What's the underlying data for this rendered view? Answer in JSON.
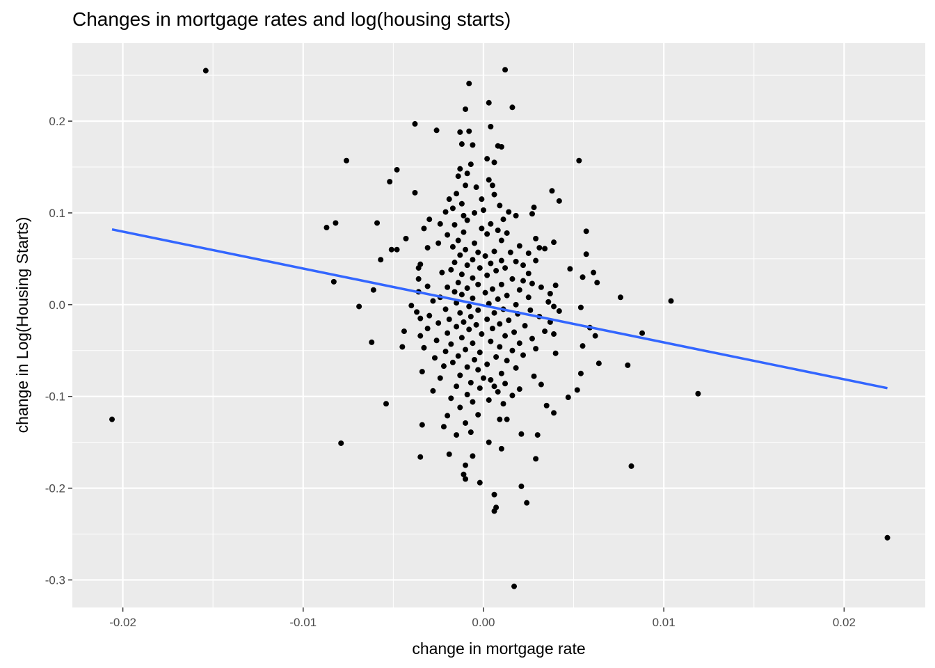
{
  "chart_data": {
    "type": "scatter",
    "title": "Changes in mortgage rates and log(housing starts)",
    "xlabel": "change in mortgage rate",
    "ylabel": "change in Log(Housing Starts)",
    "xlim": [
      -0.0228,
      0.0245
    ],
    "ylim": [
      -0.33,
      0.285
    ],
    "x_ticks": [
      {
        "value": -0.02,
        "label": "-0.02"
      },
      {
        "value": -0.01,
        "label": "-0.01"
      },
      {
        "value": 0.0,
        "label": "0.00"
      },
      {
        "value": 0.01,
        "label": "0.01"
      },
      {
        "value": 0.02,
        "label": "0.02"
      }
    ],
    "y_ticks": [
      {
        "value": -0.3,
        "label": "-0.3"
      },
      {
        "value": -0.2,
        "label": "-0.2"
      },
      {
        "value": -0.1,
        "label": "-0.1"
      },
      {
        "value": 0.0,
        "label": "0.0"
      },
      {
        "value": 0.1,
        "label": "0.1"
      },
      {
        "value": 0.2,
        "label": "0.2"
      }
    ],
    "grid": true,
    "panel_background": "#ebebeb",
    "grid_color": "#ffffff",
    "point_color": "#000000",
    "trend_color": "#3366ff",
    "trend_line": {
      "x": [
        -0.0206,
        0.0224
      ],
      "y": [
        0.082,
        -0.091
      ]
    },
    "points": [
      {
        "x": -0.0206,
        "y": -0.125
      },
      {
        "x": -0.0154,
        "y": 0.255
      },
      {
        "x": 0.0224,
        "y": -0.254
      },
      {
        "x": 0.0012,
        "y": 0.256
      },
      {
        "x": 0.0017,
        "y": -0.307
      },
      {
        "x": -0.0008,
        "y": 0.241
      },
      {
        "x": 0.0003,
        "y": 0.22
      },
      {
        "x": 0.0016,
        "y": 0.215
      },
      {
        "x": -0.001,
        "y": 0.213
      },
      {
        "x": -0.0038,
        "y": 0.197
      },
      {
        "x": 0.0004,
        "y": 0.194
      },
      {
        "x": -0.0026,
        "y": 0.19
      },
      {
        "x": -0.0013,
        "y": 0.188
      },
      {
        "x": -0.0008,
        "y": 0.189
      },
      {
        "x": -0.0006,
        "y": 0.174
      },
      {
        "x": -0.0012,
        "y": 0.175
      },
      {
        "x": 0.0008,
        "y": 0.173
      },
      {
        "x": 0.001,
        "y": 0.172
      },
      {
        "x": -0.0076,
        "y": 0.157
      },
      {
        "x": 0.0053,
        "y": 0.157
      },
      {
        "x": 0.0006,
        "y": 0.155
      },
      {
        "x": 0.0002,
        "y": 0.159
      },
      {
        "x": -0.0007,
        "y": 0.153
      },
      {
        "x": -0.0048,
        "y": 0.147
      },
      {
        "x": -0.0013,
        "y": 0.148
      },
      {
        "x": -0.0009,
        "y": 0.143
      },
      {
        "x": -0.0014,
        "y": 0.14
      },
      {
        "x": -0.0052,
        "y": 0.134
      },
      {
        "x": 0.0003,
        "y": 0.136
      },
      {
        "x": -0.001,
        "y": 0.13
      },
      {
        "x": -0.0004,
        "y": 0.128
      },
      {
        "x": 0.0005,
        "y": 0.13
      },
      {
        "x": -0.0038,
        "y": 0.122
      },
      {
        "x": 0.0038,
        "y": 0.124
      },
      {
        "x": -0.0015,
        "y": 0.121
      },
      {
        "x": 0.0006,
        "y": 0.12
      },
      {
        "x": 0.0042,
        "y": 0.113
      },
      {
        "x": -0.0019,
        "y": 0.115
      },
      {
        "x": -0.0001,
        "y": 0.115
      },
      {
        "x": -0.0012,
        "y": 0.11
      },
      {
        "x": 0.0009,
        "y": 0.108
      },
      {
        "x": 0.0028,
        "y": 0.106
      },
      {
        "x": -0.0017,
        "y": 0.105
      },
      {
        "x": 0.0,
        "y": 0.103
      },
      {
        "x": -0.0021,
        "y": 0.101
      },
      {
        "x": 0.0014,
        "y": 0.101
      },
      {
        "x": -0.0005,
        "y": 0.1
      },
      {
        "x": 0.0027,
        "y": 0.099
      },
      {
        "x": -0.0011,
        "y": 0.097
      },
      {
        "x": 0.0018,
        "y": 0.097
      },
      {
        "x": -0.003,
        "y": 0.093
      },
      {
        "x": -0.0082,
        "y": 0.089
      },
      {
        "x": -0.0059,
        "y": 0.089
      },
      {
        "x": -0.0009,
        "y": 0.092
      },
      {
        "x": 0.0011,
        "y": 0.093
      },
      {
        "x": -0.0024,
        "y": 0.088
      },
      {
        "x": -0.0016,
        "y": 0.087
      },
      {
        "x": 0.0004,
        "y": 0.088
      },
      {
        "x": -0.0087,
        "y": 0.084
      },
      {
        "x": -0.0033,
        "y": 0.083
      },
      {
        "x": -0.0001,
        "y": 0.083
      },
      {
        "x": 0.0008,
        "y": 0.081
      },
      {
        "x": 0.0057,
        "y": 0.08
      },
      {
        "x": -0.0011,
        "y": 0.079
      },
      {
        "x": 0.0013,
        "y": 0.078
      },
      {
        "x": -0.002,
        "y": 0.076
      },
      {
        "x": 0.0002,
        "y": 0.077
      },
      {
        "x": -0.0043,
        "y": 0.072
      },
      {
        "x": 0.0029,
        "y": 0.072
      },
      {
        "x": -0.0014,
        "y": 0.07
      },
      {
        "x": 0.001,
        "y": 0.07
      },
      {
        "x": -0.0025,
        "y": 0.067
      },
      {
        "x": 0.0039,
        "y": 0.068
      },
      {
        "x": -0.0005,
        "y": 0.067
      },
      {
        "x": -0.0017,
        "y": 0.063
      },
      {
        "x": 0.002,
        "y": 0.064
      },
      {
        "x": -0.0048,
        "y": 0.06
      },
      {
        "x": -0.0051,
        "y": 0.06
      },
      {
        "x": -0.0031,
        "y": 0.062
      },
      {
        "x": 0.0031,
        "y": 0.062
      },
      {
        "x": 0.0034,
        "y": 0.061
      },
      {
        "x": -0.001,
        "y": 0.06
      },
      {
        "x": 0.0006,
        "y": 0.058
      },
      {
        "x": -0.0003,
        "y": 0.057
      },
      {
        "x": 0.0015,
        "y": 0.057
      },
      {
        "x": 0.0025,
        "y": 0.056
      },
      {
        "x": 0.0057,
        "y": 0.055
      },
      {
        "x": -0.0013,
        "y": 0.054
      },
      {
        "x": 0.0001,
        "y": 0.053
      },
      {
        "x": -0.0057,
        "y": 0.049
      },
      {
        "x": 0.0029,
        "y": 0.048
      },
      {
        "x": -0.0006,
        "y": 0.049
      },
      {
        "x": 0.001,
        "y": 0.048
      },
      {
        "x": 0.0018,
        "y": 0.047
      },
      {
        "x": -0.0016,
        "y": 0.046
      },
      {
        "x": 0.0004,
        "y": 0.045
      },
      {
        "x": -0.0035,
        "y": 0.044
      },
      {
        "x": -0.0009,
        "y": 0.043
      },
      {
        "x": 0.0022,
        "y": 0.043
      },
      {
        "x": -0.0036,
        "y": 0.04
      },
      {
        "x": -0.0002,
        "y": 0.04
      },
      {
        "x": 0.0012,
        "y": 0.04
      },
      {
        "x": 0.0048,
        "y": 0.039
      },
      {
        "x": -0.0018,
        "y": 0.038
      },
      {
        "x": 0.0007,
        "y": 0.037
      },
      {
        "x": -0.0023,
        "y": 0.035
      },
      {
        "x": 0.0061,
        "y": 0.035
      },
      {
        "x": 0.0025,
        "y": 0.034
      },
      {
        "x": -0.0012,
        "y": 0.033
      },
      {
        "x": 0.0002,
        "y": 0.032
      },
      {
        "x": 0.0055,
        "y": 0.03
      },
      {
        "x": -0.0036,
        "y": 0.028
      },
      {
        "x": -0.0006,
        "y": 0.029
      },
      {
        "x": 0.0016,
        "y": 0.028
      },
      {
        "x": 0.0022,
        "y": 0.026
      },
      {
        "x": -0.0083,
        "y": 0.025
      },
      {
        "x": 0.0063,
        "y": 0.024
      },
      {
        "x": -0.0014,
        "y": 0.024
      },
      {
        "x": 0.0027,
        "y": 0.023
      },
      {
        "x": -0.0003,
        "y": 0.022
      },
      {
        "x": 0.001,
        "y": 0.022
      },
      {
        "x": 0.004,
        "y": 0.021
      },
      {
        "x": -0.0031,
        "y": 0.02
      },
      {
        "x": -0.002,
        "y": 0.019
      },
      {
        "x": 0.0032,
        "y": 0.019
      },
      {
        "x": -0.0009,
        "y": 0.018
      },
      {
        "x": 0.0005,
        "y": 0.017
      },
      {
        "x": -0.0061,
        "y": 0.016
      },
      {
        "x": 0.002,
        "y": 0.016
      },
      {
        "x": -0.0036,
        "y": 0.014
      },
      {
        "x": -0.0016,
        "y": 0.014
      },
      {
        "x": 0.0001,
        "y": 0.013
      },
      {
        "x": 0.0037,
        "y": 0.012
      },
      {
        "x": -0.0012,
        "y": 0.011
      },
      {
        "x": 0.0013,
        "y": 0.01
      },
      {
        "x": 0.0076,
        "y": 0.008
      },
      {
        "x": -0.0024,
        "y": 0.008
      },
      {
        "x": 0.0025,
        "y": 0.008
      },
      {
        "x": -0.0006,
        "y": 0.007
      },
      {
        "x": 0.0008,
        "y": 0.006
      },
      {
        "x": 0.0104,
        "y": 0.004
      },
      {
        "x": -0.0028,
        "y": 0.004
      },
      {
        "x": 0.0036,
        "y": 0.003
      },
      {
        "x": -0.0015,
        "y": 0.002
      },
      {
        "x": 0.0003,
        "y": 0.001
      },
      {
        "x": 0.0018,
        "y": 0.0
      },
      {
        "x": -0.004,
        "y": -0.001
      },
      {
        "x": -0.0069,
        "y": -0.002
      },
      {
        "x": -0.0008,
        "y": -0.002
      },
      {
        "x": 0.0039,
        "y": -0.002
      },
      {
        "x": 0.0054,
        "y": -0.003
      },
      {
        "x": -0.0021,
        "y": -0.005
      },
      {
        "x": 0.0011,
        "y": -0.005
      },
      {
        "x": 0.0026,
        "y": -0.006
      },
      {
        "x": -0.0003,
        "y": -0.006
      },
      {
        "x": 0.0042,
        "y": -0.007
      },
      {
        "x": -0.0037,
        "y": -0.008
      },
      {
        "x": -0.0013,
        "y": -0.009
      },
      {
        "x": 0.0006,
        "y": -0.009
      },
      {
        "x": 0.0019,
        "y": -0.01
      },
      {
        "x": -0.003,
        "y": -0.012
      },
      {
        "x": -0.0007,
        "y": -0.013
      },
      {
        "x": 0.0031,
        "y": -0.013
      },
      {
        "x": -0.0035,
        "y": -0.015
      },
      {
        "x": -0.0019,
        "y": -0.016
      },
      {
        "x": 0.0002,
        "y": -0.016
      },
      {
        "x": 0.0014,
        "y": -0.017
      },
      {
        "x": -0.0011,
        "y": -0.019
      },
      {
        "x": 0.0037,
        "y": -0.019
      },
      {
        "x": -0.0025,
        "y": -0.02
      },
      {
        "x": 0.0009,
        "y": -0.021
      },
      {
        "x": -0.0004,
        "y": -0.022
      },
      {
        "x": 0.0023,
        "y": -0.023
      },
      {
        "x": -0.0015,
        "y": -0.024
      },
      {
        "x": 0.0059,
        "y": -0.025
      },
      {
        "x": -0.0031,
        "y": -0.026
      },
      {
        "x": 0.0005,
        "y": -0.026
      },
      {
        "x": -0.0008,
        "y": -0.027
      },
      {
        "x": -0.0044,
        "y": -0.029
      },
      {
        "x": 0.0034,
        "y": -0.029
      },
      {
        "x": 0.0017,
        "y": -0.03
      },
      {
        "x": -0.002,
        "y": -0.031
      },
      {
        "x": 0.0088,
        "y": -0.031
      },
      {
        "x": -0.0001,
        "y": -0.032
      },
      {
        "x": 0.0039,
        "y": -0.032
      },
      {
        "x": -0.0035,
        "y": -0.034
      },
      {
        "x": 0.0012,
        "y": -0.034
      },
      {
        "x": 0.0062,
        "y": -0.034
      },
      {
        "x": -0.0012,
        "y": -0.036
      },
      {
        "x": 0.0027,
        "y": -0.037
      },
      {
        "x": -0.0026,
        "y": -0.039
      },
      {
        "x": 0.0004,
        "y": -0.04
      },
      {
        "x": -0.0062,
        "y": -0.041
      },
      {
        "x": -0.0006,
        "y": -0.042
      },
      {
        "x": 0.002,
        "y": -0.042
      },
      {
        "x": -0.0018,
        "y": -0.043
      },
      {
        "x": 0.0055,
        "y": -0.045
      },
      {
        "x": -0.0045,
        "y": -0.046
      },
      {
        "x": 0.0009,
        "y": -0.046
      },
      {
        "x": -0.0033,
        "y": -0.047
      },
      {
        "x": 0.0029,
        "y": -0.048
      },
      {
        "x": -0.001,
        "y": -0.049
      },
      {
        "x": 0.0016,
        "y": -0.05
      },
      {
        "x": -0.0021,
        "y": -0.051
      },
      {
        "x": -0.0002,
        "y": -0.052
      },
      {
        "x": 0.004,
        "y": -0.053
      },
      {
        "x": 0.0022,
        "y": -0.055
      },
      {
        "x": -0.0014,
        "y": -0.056
      },
      {
        "x": 0.0007,
        "y": -0.057
      },
      {
        "x": -0.0027,
        "y": -0.058
      },
      {
        "x": -0.0005,
        "y": -0.06
      },
      {
        "x": 0.0013,
        "y": -0.061
      },
      {
        "x": -0.0017,
        "y": -0.063
      },
      {
        "x": 0.0064,
        "y": -0.064
      },
      {
        "x": 0.0002,
        "y": -0.065
      },
      {
        "x": 0.008,
        "y": -0.066
      },
      {
        "x": -0.0022,
        "y": -0.067
      },
      {
        "x": -0.0009,
        "y": -0.068
      },
      {
        "x": 0.0018,
        "y": -0.069
      },
      {
        "x": -0.0003,
        "y": -0.071
      },
      {
        "x": -0.0034,
        "y": -0.073
      },
      {
        "x": 0.0054,
        "y": -0.075
      },
      {
        "x": 0.001,
        "y": -0.075
      },
      {
        "x": -0.0013,
        "y": -0.077
      },
      {
        "x": 0.0028,
        "y": -0.078
      },
      {
        "x": -0.0024,
        "y": -0.08
      },
      {
        "x": 0.0,
        "y": -0.08
      },
      {
        "x": 0.0004,
        "y": -0.082
      },
      {
        "x": -0.0007,
        "y": -0.085
      },
      {
        "x": 0.0012,
        "y": -0.086
      },
      {
        "x": 0.0032,
        "y": -0.087
      },
      {
        "x": -0.0015,
        "y": -0.089
      },
      {
        "x": 0.0006,
        "y": -0.089
      },
      {
        "x": -0.0002,
        "y": -0.091
      },
      {
        "x": 0.002,
        "y": -0.092
      },
      {
        "x": 0.0052,
        "y": -0.093
      },
      {
        "x": -0.0028,
        "y": -0.094
      },
      {
        "x": 0.0008,
        "y": -0.095
      },
      {
        "x": 0.0119,
        "y": -0.097
      },
      {
        "x": -0.0009,
        "y": -0.098
      },
      {
        "x": 0.0016,
        "y": -0.099
      },
      {
        "x": 0.0047,
        "y": -0.101
      },
      {
        "x": -0.0018,
        "y": -0.102
      },
      {
        "x": 0.0003,
        "y": -0.104
      },
      {
        "x": -0.0006,
        "y": -0.106
      },
      {
        "x": -0.0054,
        "y": -0.108
      },
      {
        "x": 0.0011,
        "y": -0.108
      },
      {
        "x": 0.0035,
        "y": -0.11
      },
      {
        "x": -0.0013,
        "y": -0.112
      },
      {
        "x": 0.0039,
        "y": -0.118
      },
      {
        "x": -0.0003,
        "y": -0.12
      },
      {
        "x": -0.002,
        "y": -0.121
      },
      {
        "x": 0.0009,
        "y": -0.125
      },
      {
        "x": 0.0013,
        "y": -0.125
      },
      {
        "x": -0.001,
        "y": -0.129
      },
      {
        "x": -0.0034,
        "y": -0.131
      },
      {
        "x": -0.0022,
        "y": -0.133
      },
      {
        "x": -0.0007,
        "y": -0.139
      },
      {
        "x": 0.003,
        "y": -0.142
      },
      {
        "x": -0.0015,
        "y": -0.142
      },
      {
        "x": 0.0021,
        "y": -0.141
      },
      {
        "x": -0.0079,
        "y": -0.151
      },
      {
        "x": 0.0003,
        "y": -0.15
      },
      {
        "x": 0.001,
        "y": -0.157
      },
      {
        "x": -0.0035,
        "y": -0.166
      },
      {
        "x": -0.0019,
        "y": -0.163
      },
      {
        "x": -0.0006,
        "y": -0.165
      },
      {
        "x": 0.0029,
        "y": -0.168
      },
      {
        "x": -0.001,
        "y": -0.175
      },
      {
        "x": 0.0082,
        "y": -0.176
      },
      {
        "x": -0.0011,
        "y": -0.185
      },
      {
        "x": -0.001,
        "y": -0.19
      },
      {
        "x": -0.0002,
        "y": -0.194
      },
      {
        "x": 0.0021,
        "y": -0.198
      },
      {
        "x": 0.0006,
        "y": -0.207
      },
      {
        "x": 0.0024,
        "y": -0.216
      },
      {
        "x": 0.0007,
        "y": -0.221
      },
      {
        "x": 0.0006,
        "y": -0.225
      }
    ]
  }
}
